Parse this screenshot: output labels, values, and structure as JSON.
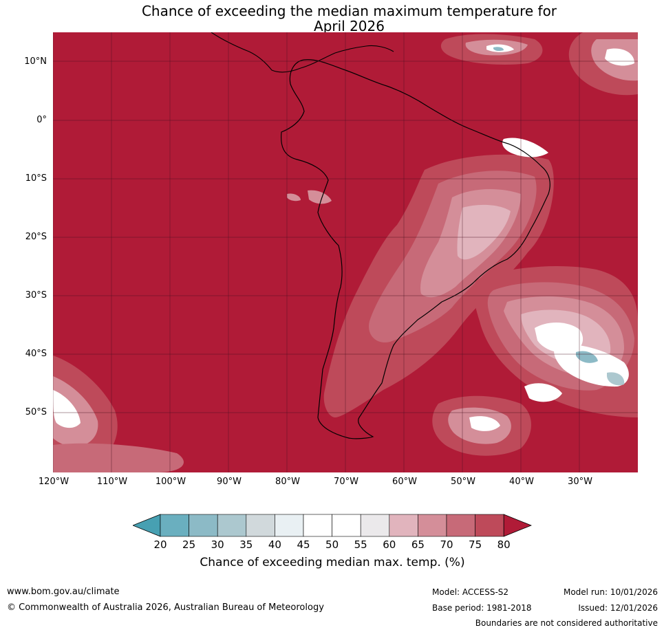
{
  "title": {
    "line1": "Chance of exceeding the median maximum temperature for",
    "line2": "April 2026"
  },
  "map": {
    "background_color": "#b01b37",
    "lat_labels": [
      "10°N",
      "0°",
      "10°S",
      "20°S",
      "30°S",
      "40°S",
      "50°S"
    ],
    "lon_labels": [
      "120°W",
      "110°W",
      "100°W",
      "90°W",
      "80°W",
      "70°W",
      "60°W",
      "50°W",
      "40°W",
      "30°W"
    ]
  },
  "colorbar": {
    "ticks": [
      "20",
      "25",
      "30",
      "35",
      "40",
      "45",
      "50",
      "55",
      "60",
      "65",
      "70",
      "75",
      "80"
    ],
    "colors": [
      "#47a0b2",
      "#6aafbf",
      "#8cbac6",
      "#acc8cf",
      "#d1d9dc",
      "#e9f0f3",
      "#ffffff",
      "#ffffff",
      "#ebe9eb",
      "#e1b4bd",
      "#d48e99",
      "#c76a78",
      "#be4a5a",
      "#b01b37"
    ],
    "label": "Chance of exceeding median max. temp. (%)"
  },
  "footer": {
    "website": "www.bom.gov.au/climate",
    "copyright": "© Commonwealth of Australia 2026, Australian Bureau of Meteorology",
    "model": "Model: ACCESS-S2",
    "base_period": "Base period: 1981-2018",
    "model_run": "Model run: 10/01/2026",
    "issued": "Issued: 12/01/2026",
    "disclaimer": "Boundaries are not considered authoritative"
  }
}
